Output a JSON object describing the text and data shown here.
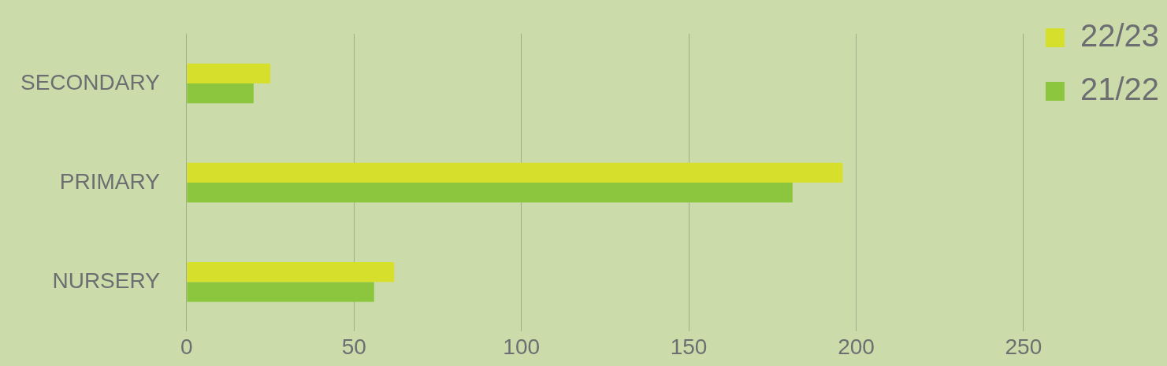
{
  "chart_data": {
    "type": "bar",
    "orientation": "horizontal",
    "categories": [
      "SECONDARY",
      "PRIMARY",
      "NURSERY"
    ],
    "series": [
      {
        "name": "22/23",
        "color": "#d6e02c",
        "values": [
          25,
          196,
          62
        ]
      },
      {
        "name": "21/22",
        "color": "#8cc63f",
        "values": [
          20,
          181,
          56
        ]
      }
    ],
    "xlim": [
      0,
      250
    ],
    "xticks": [
      0,
      50,
      100,
      150,
      200,
      250
    ],
    "grid": "x",
    "legend": "top right"
  }
}
